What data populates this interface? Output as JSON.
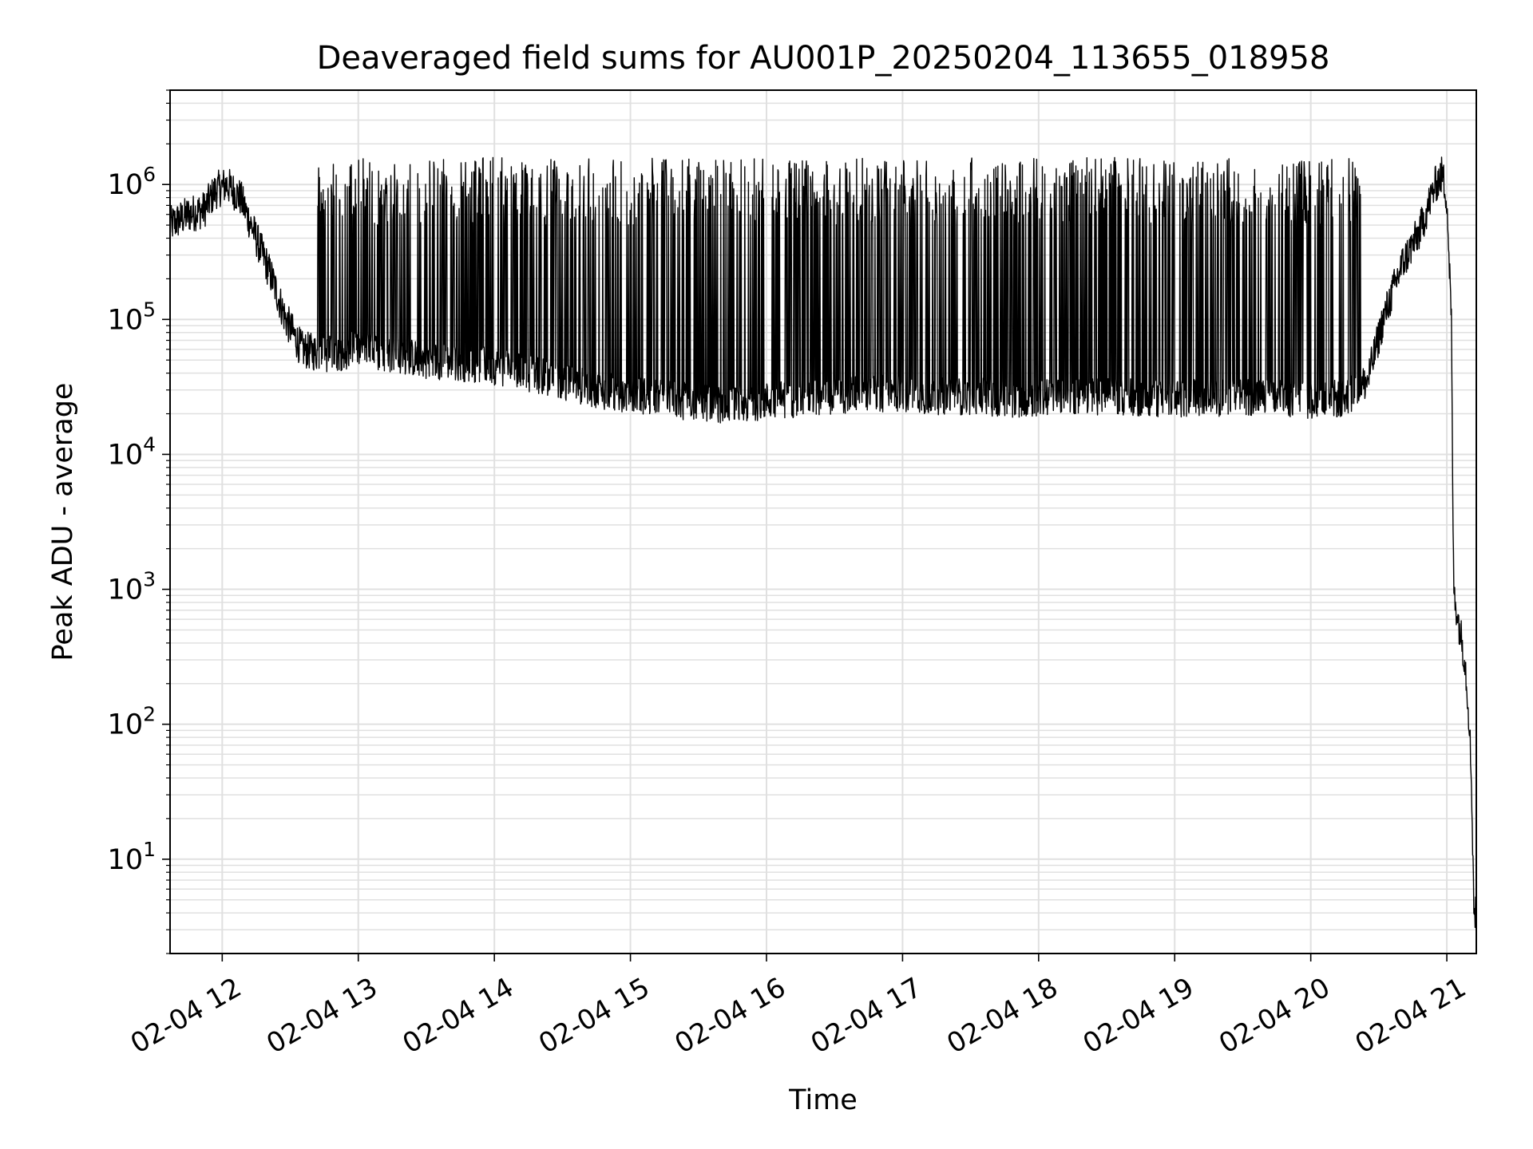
{
  "chart_data": {
    "type": "line",
    "title": "Deaveraged field sums for AU001P_20250204_113655_018958",
    "xlabel": "Time",
    "ylabel": "Peak ADU - average",
    "x_scale": "time",
    "y_scale": "log",
    "xlim": [
      "02-04 11:37",
      "02-04 21:13"
    ],
    "ylim": [
      2,
      5000000
    ],
    "x_ticks": [
      {
        "at": "02-04 12:00",
        "label": "02-04 12"
      },
      {
        "at": "02-04 13:00",
        "label": "02-04 13"
      },
      {
        "at": "02-04 14:00",
        "label": "02-04 14"
      },
      {
        "at": "02-04 15:00",
        "label": "02-04 15"
      },
      {
        "at": "02-04 16:00",
        "label": "02-04 16"
      },
      {
        "at": "02-04 17:00",
        "label": "02-04 17"
      },
      {
        "at": "02-04 18:00",
        "label": "02-04 18"
      },
      {
        "at": "02-04 19:00",
        "label": "02-04 19"
      },
      {
        "at": "02-04 20:00",
        "label": "02-04 20"
      },
      {
        "at": "02-04 21:00",
        "label": "02-04 21"
      }
    ],
    "y_ticks": [
      {
        "value": 10,
        "base": "10",
        "exp": "1"
      },
      {
        "value": 100,
        "base": "10",
        "exp": "2"
      },
      {
        "value": 1000,
        "base": "10",
        "exp": "3"
      },
      {
        "value": 10000,
        "base": "10",
        "exp": "4"
      },
      {
        "value": 100000,
        "base": "10",
        "exp": "5"
      },
      {
        "value": 1000000,
        "base": "10",
        "exp": "6"
      }
    ],
    "grid": true,
    "line_color": "#000000",
    "grid_color": "#e0e0e0",
    "series": [
      {
        "points": [
          [
            "02-04 11:37",
            500000
          ],
          [
            "02-04 11:45",
            600000
          ],
          [
            "02-04 11:52",
            650000
          ],
          [
            "02-04 11:57",
            900000
          ],
          [
            "02-04 12:02",
            1000000
          ],
          [
            "02-04 12:08",
            800000
          ],
          [
            "02-04 12:15",
            400000
          ],
          [
            "02-04 12:22",
            200000
          ],
          [
            "02-04 12:28",
            100000
          ],
          [
            "02-04 12:35",
            60000
          ],
          [
            "02-04 12:45",
            55000
          ],
          [
            "02-04 13:00",
            60000
          ],
          [
            "02-04 13:15",
            55000
          ],
          [
            "02-04 13:30",
            50000
          ],
          [
            "02-04 13:45",
            48000
          ],
          [
            "02-04 14:00",
            45000
          ],
          [
            "02-04 14:15",
            40000
          ],
          [
            "02-04 14:30",
            35000
          ],
          [
            "02-04 14:45",
            30000
          ],
          [
            "02-04 15:00",
            28000
          ],
          [
            "02-04 15:15",
            26000
          ],
          [
            "02-04 15:30",
            24000
          ],
          [
            "02-04 15:45",
            23000
          ],
          [
            "02-04 16:00",
            25000
          ],
          [
            "02-04 16:15",
            26000
          ],
          [
            "02-04 16:30",
            27000
          ],
          [
            "02-04 16:45",
            28000
          ],
          [
            "02-04 17:00",
            28000
          ],
          [
            "02-04 17:15",
            27000
          ],
          [
            "02-04 17:30",
            27000
          ],
          [
            "02-04 17:45",
            26000
          ],
          [
            "02-04 18:00",
            26000
          ],
          [
            "02-04 18:15",
            27000
          ],
          [
            "02-04 18:30",
            27000
          ],
          [
            "02-04 18:45",
            26000
          ],
          [
            "02-04 19:00",
            26000
          ],
          [
            "02-04 19:15",
            26000
          ],
          [
            "02-04 19:30",
            27000
          ],
          [
            "02-04 19:45",
            26000
          ],
          [
            "02-04 20:00",
            25000
          ],
          [
            "02-04 20:15",
            26000
          ],
          [
            "02-04 20:25",
            35000
          ],
          [
            "02-04 20:32",
            100000
          ],
          [
            "02-04 20:40",
            250000
          ],
          [
            "02-04 20:48",
            450000
          ],
          [
            "02-04 20:55",
            1000000
          ],
          [
            "02-04 20:58",
            1200000
          ],
          [
            "02-04 21:00",
            800000
          ],
          [
            "02-04 21:02",
            100000
          ],
          [
            "02-04 21:03",
            1000
          ],
          [
            "02-04 21:05",
            600
          ],
          [
            "02-04 21:08",
            300
          ],
          [
            "02-04 21:10",
            100
          ],
          [
            "02-04 21:11",
            30
          ],
          [
            "02-04 21:12",
            4
          ],
          [
            "02-04 21:13",
            4
          ]
        ],
        "typical_peak": 1000000
      }
    ]
  }
}
